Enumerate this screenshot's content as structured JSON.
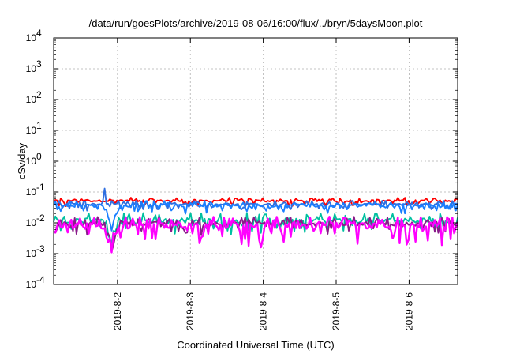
{
  "chart_data": {
    "type": "line",
    "title": "/data/run/goesPlots/archive/2019-08-06/16:00/flux/../bryn/5daysMoon.plot",
    "xlabel": "Coordinated Universal Time (UTC)",
    "ylabel": "cSv/day",
    "yscale": "log",
    "ylim": [
      0.0001,
      10000
    ],
    "y_ticks": [
      {
        "exp": -4,
        "label": "10",
        "sup": "-4"
      },
      {
        "exp": -3,
        "label": "10",
        "sup": "-3"
      },
      {
        "exp": -2,
        "label": "10",
        "sup": "-2"
      },
      {
        "exp": -1,
        "label": "10",
        "sup": "-1"
      },
      {
        "exp": 0,
        "label": "10",
        "sup": "0"
      },
      {
        "exp": 1,
        "label": "10",
        "sup": "1"
      },
      {
        "exp": 2,
        "label": "10",
        "sup": "2"
      },
      {
        "exp": 3,
        "label": "10",
        "sup": "3"
      },
      {
        "exp": 4,
        "label": "10",
        "sup": "4"
      }
    ],
    "xlim": [
      "2019-08-01T03:00",
      "2019-08-06T16:00"
    ],
    "x_ticks": [
      "2019-8-2",
      "2019-8-3",
      "2019-8-4",
      "2019-8-5",
      "2019-8-6"
    ],
    "x_tick_dates": [
      "2019-08-02T00:00",
      "2019-08-03T00:00",
      "2019-08-04T00:00",
      "2019-08-05T00:00",
      "2019-08-06T00:00"
    ],
    "grid": true,
    "legend": "none",
    "series": [
      {
        "color": "#ff0000",
        "base": 0.052,
        "spread": 0.12,
        "dip": 0.7
      },
      {
        "color": "#2f6fe0",
        "base": 0.04,
        "spread": 0.14,
        "dip": 0.6
      },
      {
        "color": "#00c0a0",
        "base": 0.012,
        "spread": 0.35,
        "dip": 0.5
      },
      {
        "color": "#8a1a8a",
        "base": 0.0095,
        "spread": 0.3,
        "dip": 0.5
      },
      {
        "color": "#ff00ff",
        "base": 0.008,
        "spread": 0.45,
        "dip": 0.45
      },
      {
        "color": "#1a7fff",
        "base": 0.036,
        "spread": 0.2,
        "dip": 0.55
      }
    ]
  }
}
